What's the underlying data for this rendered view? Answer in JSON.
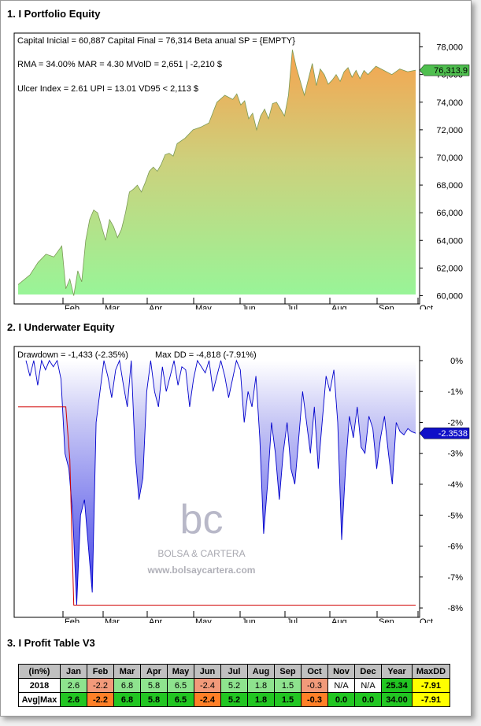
{
  "sections": {
    "equity_title": "1. I Portfolio Equity",
    "underwater_title": "2. I Underwater Equity",
    "profit_title": "3. I Profit Table V3"
  },
  "chart_data": [
    {
      "type": "area",
      "title": "1. I Portfolio Equity",
      "annotations": [
        "Capital Inicial = 60,887  Capital Final = 76,314  Beta anual SP = {EMPTY}",
        "RMA = 34.00%   MAR = 4.30   MVolD = 2,651 | -2,210 $",
        "Ulcer Index = 2.61   UPI = 13.01   VD95 < 2,113 $"
      ],
      "x_ticks": [
        "Feb",
        "Mar",
        "Apr",
        "May",
        "Jun",
        "Jul",
        "Aug",
        "Sep",
        "Oct"
      ],
      "y_ticks": [
        "78,000",
        "76,000",
        "74,000",
        "72,000",
        "70,000",
        "68,000",
        "66,000",
        "64,000",
        "62,000",
        "60,000"
      ],
      "ylim": [
        59400,
        79000
      ],
      "last_value_label": "76,313.9",
      "series": [
        {
          "x": [
            0,
            0.03,
            0.05,
            0.07,
            0.09,
            0.11,
            0.12,
            0.13,
            0.14,
            0.15,
            0.16,
            0.17,
            0.18,
            0.19,
            0.2,
            0.21,
            0.22,
            0.23,
            0.24,
            0.25,
            0.26,
            0.27,
            0.28,
            0.29,
            0.3,
            0.31,
            0.32,
            0.33,
            0.34,
            0.35,
            0.36,
            0.37,
            0.38,
            0.39,
            0.4,
            0.42,
            0.44,
            0.46,
            0.48,
            0.5,
            0.52,
            0.54,
            0.55,
            0.56,
            0.57,
            0.58,
            0.59,
            0.6,
            0.61,
            0.62,
            0.63,
            0.64,
            0.65,
            0.66,
            0.67,
            0.68,
            0.69,
            0.7,
            0.72,
            0.74,
            0.75,
            0.76,
            0.77,
            0.78,
            0.79,
            0.8,
            0.81,
            0.82,
            0.83,
            0.84,
            0.85,
            0.86,
            0.87,
            0.88,
            0.9,
            0.92,
            0.94,
            0.96,
            0.98,
            1.0
          ],
          "values": [
            60800,
            61500,
            62400,
            63000,
            62800,
            63600,
            60500,
            61200,
            60000,
            61800,
            61000,
            64000,
            65500,
            66200,
            66000,
            65000,
            64000,
            65500,
            65000,
            64200,
            64800,
            66000,
            67500,
            67700,
            68000,
            67500,
            68200,
            69000,
            69300,
            69000,
            69500,
            70200,
            70300,
            70100,
            71000,
            71400,
            72000,
            72200,
            72500,
            74000,
            74500,
            74200,
            74600,
            73800,
            74100,
            72800,
            73200,
            72000,
            73000,
            73500,
            72800,
            73900,
            74000,
            73500,
            73000,
            74500,
            77800,
            76500,
            74500,
            76800,
            75200,
            76400,
            76000,
            75300,
            75600,
            76000,
            75500,
            76200,
            76500,
            75800,
            76300,
            75700,
            76300,
            76000,
            76600,
            76300,
            76000,
            76400,
            76200,
            76314
          ]
        }
      ]
    },
    {
      "type": "area",
      "title": "2. I Underwater Equity",
      "annotations": [
        "Drawdown = -1,433 (-2.35%)",
        "Max DD = -4,818 (-7.91%)"
      ],
      "x_ticks": [
        "Feb",
        "Mar",
        "Apr",
        "May",
        "Jun",
        "Jul",
        "Aug",
        "Sep",
        "Oct"
      ],
      "y_ticks": [
        "0%",
        "-1%",
        "-2%",
        "-3%",
        "-4%",
        "-5%",
        "-6%",
        "-7%",
        "-8%"
      ],
      "ylim": [
        -8.1,
        0.1
      ],
      "last_value_label": "-2.3538",
      "series": [
        {
          "name": "Drawdown",
          "x": [
            0,
            0.01,
            0.02,
            0.03,
            0.04,
            0.05,
            0.06,
            0.07,
            0.08,
            0.09,
            0.1,
            0.11,
            0.12,
            0.13,
            0.14,
            0.15,
            0.16,
            0.17,
            0.18,
            0.19,
            0.2,
            0.21,
            0.22,
            0.23,
            0.24,
            0.25,
            0.26,
            0.27,
            0.28,
            0.29,
            0.3,
            0.31,
            0.32,
            0.33,
            0.34,
            0.35,
            0.36,
            0.37,
            0.38,
            0.39,
            0.4,
            0.41,
            0.42,
            0.43,
            0.44,
            0.45,
            0.46,
            0.47,
            0.48,
            0.49,
            0.5,
            0.51,
            0.52,
            0.53,
            0.54,
            0.55,
            0.56,
            0.57,
            0.58,
            0.59,
            0.6,
            0.61,
            0.62,
            0.63,
            0.64,
            0.65,
            0.66,
            0.67,
            0.68,
            0.69,
            0.7,
            0.71,
            0.72,
            0.73,
            0.74,
            0.75,
            0.76,
            0.77,
            0.78,
            0.79,
            0.8,
            0.81,
            0.82,
            0.83,
            0.84,
            0.85,
            0.86,
            0.87,
            0.88,
            0.89,
            0.9,
            0.91,
            0.92,
            0.93,
            0.94,
            0.95,
            0.96,
            0.97,
            0.98,
            0.99,
            1.0
          ],
          "values": [
            0,
            -0.5,
            0,
            -0.8,
            0,
            -0.3,
            0,
            -0.2,
            0,
            -0.6,
            -3,
            -3.5,
            -5,
            -7.91,
            -5,
            -4.5,
            -6,
            -7.5,
            -2,
            -1,
            0,
            -0.5,
            -1.2,
            -0.3,
            0,
            -0.8,
            -1.5,
            0,
            -3,
            -4.5,
            -3.8,
            -1,
            0,
            -1,
            -1.5,
            -0.2,
            -1,
            -0.5,
            0,
            -0.8,
            -0.2,
            -0.3,
            -1.5,
            -0.6,
            0,
            -0.2,
            -0.4,
            0,
            -1,
            -0.5,
            0,
            -0.5,
            -1.2,
            -0.6,
            0,
            -0.3,
            -2,
            -1,
            -1.5,
            -0.5,
            -2.5,
            -5.6,
            -4,
            -2,
            -3,
            -4.5,
            -3,
            -2,
            -3.5,
            -4,
            -2.5,
            -1,
            -2,
            -3,
            -1.5,
            -3.5,
            -2,
            -0.5,
            -1,
            -0.3,
            -2,
            -5.8,
            -3.5,
            -1.8,
            -2.5,
            -1.5,
            -2.8,
            -3,
            -1.8,
            -2.2,
            -3.5,
            -2.5,
            -1.8,
            -3,
            -4,
            -2,
            -2.3,
            -2.4,
            -2.2,
            -2.3,
            -2.35
          ]
        },
        {
          "name": "Max DD",
          "x": [
            0,
            0.12,
            0.13,
            0.14,
            1.0
          ],
          "values": [
            -1.5,
            -1.5,
            -3.2,
            -7.91,
            -7.91
          ]
        }
      ]
    }
  ],
  "profit_table": {
    "header": [
      "(in%)",
      "Jan",
      "Feb",
      "Mar",
      "Apr",
      "May",
      "Jun",
      "Jul",
      "Aug",
      "Sep",
      "Oct",
      "Nov",
      "Dec",
      "Year",
      "MaxDD"
    ],
    "rows": [
      {
        "label": "2018",
        "cells": [
          "2.6",
          "-2.2",
          "6.8",
          "5.8",
          "6.5",
          "-2.4",
          "5.2",
          "1.8",
          "1.5",
          "-0.3",
          "N/A",
          "N/A",
          "25.34",
          "-7.91"
        ]
      },
      {
        "label": "Avg|Max",
        "cells": [
          "2.6",
          "-2.2",
          "6.8",
          "5.8",
          "6.5",
          "-2.4",
          "5.2",
          "1.8",
          "1.5",
          "-0.3",
          "0.0",
          "0.0",
          "34.00",
          "-7.91"
        ]
      }
    ],
    "colors": {
      "positive": "#8ee38e",
      "negative": "#f29a7a",
      "strong_positive": "#22c622",
      "strong_negative": "#ff7f27",
      "maxdd": "#ffff00"
    }
  },
  "watermark": {
    "logo": "bc",
    "name": "BOLSA & CARTERA",
    "url": "www.bolsaycartera.com"
  }
}
